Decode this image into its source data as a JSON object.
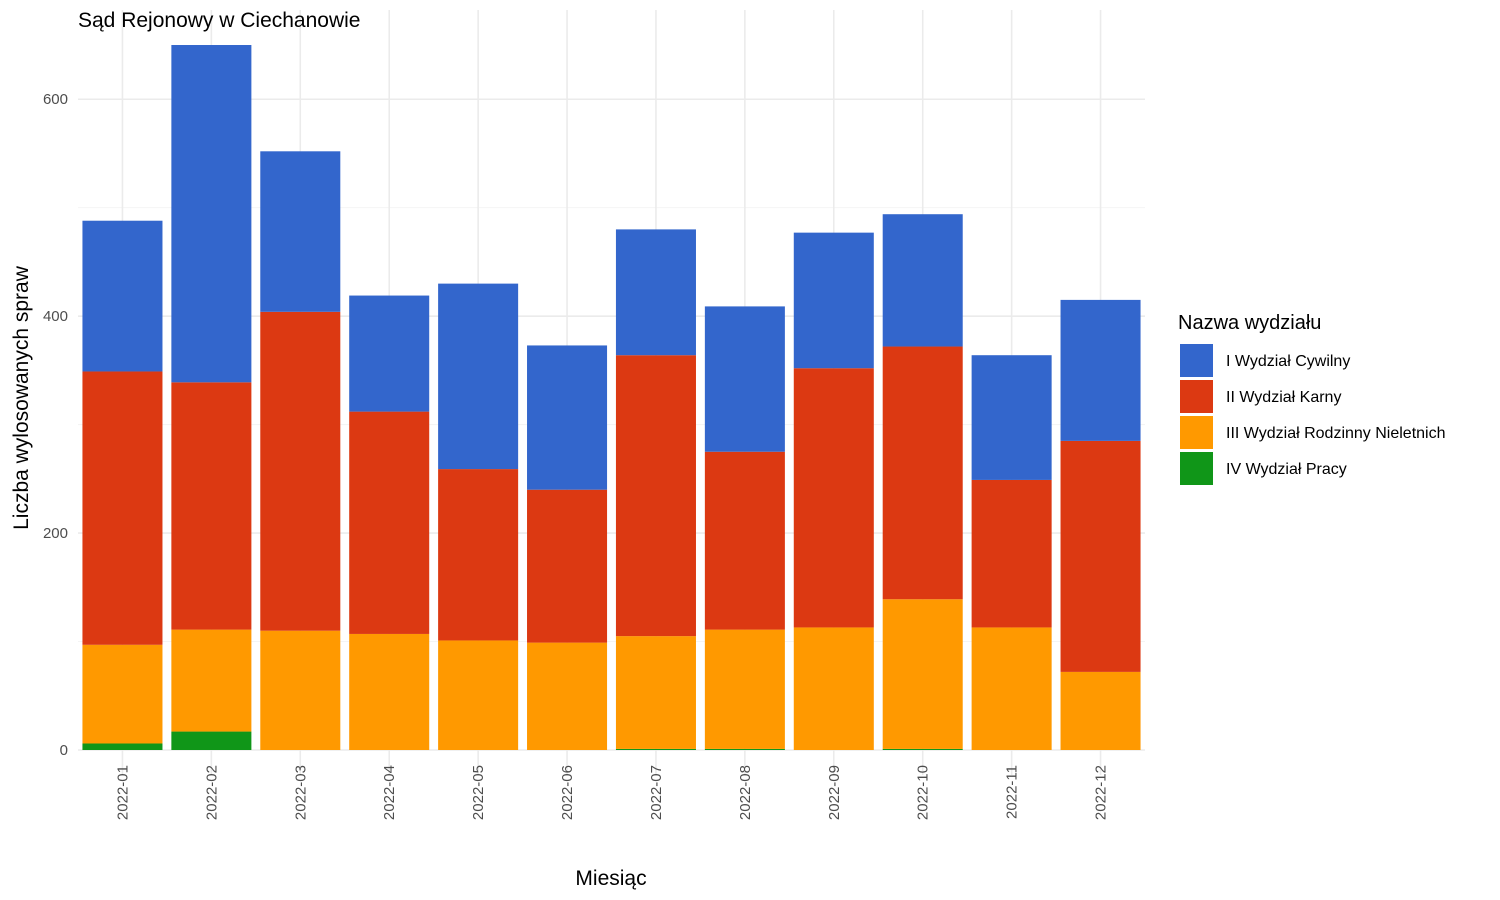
{
  "chart_data": {
    "type": "bar",
    "stacked": true,
    "title": "Sąd Rejonowy w Ciechanowie",
    "xlabel": "Miesiąc",
    "ylabel": "Liczba wylosowanych spraw",
    "categories": [
      "2022-01",
      "2022-02",
      "2022-03",
      "2022-04",
      "2022-05",
      "2022-06",
      "2022-07",
      "2022-08",
      "2022-09",
      "2022-10",
      "2022-11",
      "2022-12"
    ],
    "ylim": [
      0,
      650
    ],
    "yticks": [
      0,
      200,
      400,
      600
    ],
    "grid": true,
    "legend": {
      "title": "Nazwa wydziału",
      "position": "right"
    },
    "series": [
      {
        "name": "IV Wydział Pracy",
        "color": "#109618",
        "values": [
          6,
          17,
          0,
          0,
          0,
          0,
          1,
          1,
          0,
          1,
          0,
          0
        ]
      },
      {
        "name": "III Wydział Rodzinny Nieletnich",
        "color": "#ff9900",
        "values": [
          91,
          94,
          110,
          107,
          101,
          99,
          104,
          110,
          113,
          138,
          113,
          72
        ]
      },
      {
        "name": "II Wydział Karny",
        "color": "#dc3912",
        "values": [
          252,
          228,
          294,
          205,
          158,
          141,
          259,
          164,
          239,
          233,
          136,
          213
        ]
      },
      {
        "name": "I Wydział Cywilny",
        "color": "#3366cc",
        "values": [
          139,
          311,
          148,
          107,
          171,
          133,
          116,
          134,
          125,
          122,
          115,
          130
        ]
      }
    ],
    "legend_order": [
      3,
      2,
      1,
      0
    ]
  }
}
